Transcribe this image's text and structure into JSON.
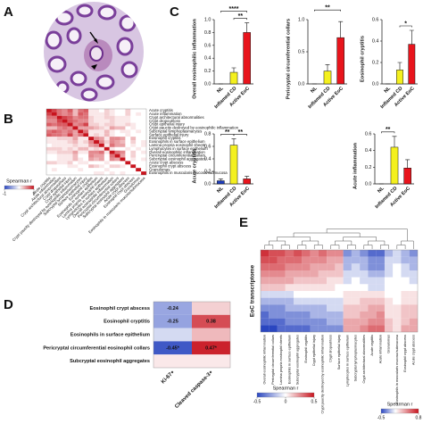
{
  "panel_labels": [
    "A",
    "B",
    "C",
    "D",
    "E"
  ],
  "chart_data": [
    {
      "type": "heatmap",
      "rows": [
        "Acute cryptitis",
        "Acute inflammation",
        "Crypt architectural abnormalities",
        "Crypt dropout/loss",
        "Crypt epithelial injury",
        "Crypt paucity destroyed by eosinophilic inflammation",
        "Subcryptal lymphoplasmacytes",
        "Surface epithelial injury",
        "Eosinophil cryptitis",
        "Eosinophils in surface epithelium",
        "Lamina propria eosinophil sheets",
        "Lymphocytes in surface epithelium",
        "Overall eosinophilic inflammation",
        "Pericryptal circumferential collars",
        "Subcryptal eosinophil aggregates",
        "Acute crypt abscess",
        "Eosinophil crypt abscess",
        "Granulomas",
        "Eosinophils in muscularis mucosa/submucosa"
      ],
      "columns": [
        "Acute cryptitis",
        "Acute inflammation",
        "Crypt architectural abnormalities",
        "Crypt dropout/loss",
        "Crypt epithelial injury",
        "Crypt paucity destroyed by eosinophilic inflammation",
        "Subcryptal lymphoplasmacytes",
        "Surface epithelial injury",
        "Eosinophil cryptitis",
        "Eosinophils in surface epithelium",
        "Lamina propria eosinophil sheets",
        "Lymphocytes in surface epithelium",
        "Overall eosinophilic inflammation",
        "Pericryptal circumferential collars",
        "Subcryptal eosinophil aggregates",
        "Acute crypt abscess",
        "Eosinophil crypt abscess",
        "Granulomas",
        "Eosinophils in muscularis mucosa/submucosa"
      ],
      "values": [
        [
          1,
          0.8,
          0.6,
          0.5,
          0.7,
          0.3,
          0.6,
          0.7,
          0.1,
          0.1,
          0,
          0.2,
          0.1,
          0,
          0,
          0.2,
          0,
          0,
          0
        ],
        [
          0.8,
          1,
          0.6,
          0.5,
          0.6,
          0.3,
          0.7,
          0.6,
          0.1,
          0.1,
          0.1,
          0.2,
          0.1,
          0,
          0,
          0.2,
          0,
          0.1,
          0
        ],
        [
          0.6,
          0.6,
          1,
          0.8,
          0.7,
          0.5,
          0.6,
          0.6,
          0.2,
          0.1,
          0.1,
          0.2,
          0.2,
          0.1,
          0.1,
          0.1,
          0,
          0,
          0
        ],
        [
          0.5,
          0.5,
          0.8,
          1,
          0.7,
          0.6,
          0.5,
          0.5,
          0.2,
          0.1,
          0.1,
          0.1,
          0.2,
          0.1,
          0.1,
          0.1,
          0,
          0,
          0
        ],
        [
          0.7,
          0.6,
          0.7,
          0.7,
          1,
          0.5,
          0.6,
          0.8,
          0.2,
          0.2,
          0.1,
          0.2,
          0.2,
          0.1,
          0.1,
          0.2,
          0.1,
          0,
          0
        ],
        [
          0.3,
          0.3,
          0.5,
          0.6,
          0.5,
          1,
          0.4,
          0.4,
          0.4,
          0.3,
          0.2,
          0.1,
          0.4,
          0.3,
          0.3,
          0,
          0.1,
          0,
          0
        ],
        [
          0.6,
          0.7,
          0.6,
          0.5,
          0.6,
          0.4,
          1,
          0.6,
          0.1,
          0.1,
          0.1,
          0.3,
          0.1,
          0,
          0.1,
          0.1,
          0,
          0.1,
          0
        ],
        [
          0.7,
          0.6,
          0.6,
          0.5,
          0.8,
          0.4,
          0.6,
          1,
          0.1,
          0.2,
          0.1,
          0.3,
          0.1,
          0,
          0,
          0.1,
          0,
          0,
          0
        ],
        [
          0.1,
          0.1,
          0.2,
          0.2,
          0.2,
          0.4,
          0.1,
          0.1,
          1,
          0.5,
          0.4,
          0.1,
          0.5,
          0.5,
          0.4,
          0,
          0.3,
          0,
          0
        ],
        [
          0.1,
          0.1,
          0.1,
          0.1,
          0.2,
          0.3,
          0.1,
          0.2,
          0.5,
          1,
          0.5,
          0.2,
          0.5,
          0.4,
          0.3,
          0,
          0.2,
          0,
          0.1
        ],
        [
          0,
          0.1,
          0.1,
          0.1,
          0.1,
          0.2,
          0.1,
          0.1,
          0.4,
          0.5,
          1,
          0.1,
          0.6,
          0.4,
          0.4,
          0,
          0.1,
          0,
          0.1
        ],
        [
          0.2,
          0.2,
          0.2,
          0.1,
          0.2,
          0.1,
          0.3,
          0.3,
          0.1,
          0.2,
          0.1,
          1,
          0.1,
          0,
          0,
          0.1,
          0,
          0.1,
          0
        ],
        [
          0.1,
          0.1,
          0.2,
          0.2,
          0.2,
          0.4,
          0.1,
          0.1,
          0.5,
          0.5,
          0.6,
          0.1,
          1,
          0.6,
          0.5,
          0,
          0.2,
          0,
          0.1
        ],
        [
          0,
          0,
          0.1,
          0.1,
          0.1,
          0.3,
          0,
          0,
          0.5,
          0.4,
          0.4,
          0,
          0.6,
          1,
          0.4,
          0,
          0.2,
          0,
          0
        ],
        [
          0,
          0,
          0.1,
          0.1,
          0.1,
          0.3,
          0.1,
          0,
          0.4,
          0.3,
          0.4,
          0,
          0.5,
          0.4,
          1,
          0,
          0.1,
          0,
          0.1
        ],
        [
          0.2,
          0.2,
          0.1,
          0.1,
          0.2,
          0,
          0.1,
          0.1,
          0,
          0,
          0,
          0.1,
          0,
          0,
          0,
          1,
          0,
          0,
          0
        ],
        [
          0,
          0,
          0,
          0,
          0.1,
          0.1,
          0,
          0,
          0.3,
          0.2,
          0.1,
          0,
          0.2,
          0.2,
          0.1,
          0,
          1,
          0,
          0
        ],
        [
          0,
          0.1,
          0,
          0,
          0,
          0,
          0.1,
          0,
          0,
          0,
          0,
          0.1,
          0,
          0,
          0,
          0,
          0,
          1,
          0
        ],
        [
          0,
          0,
          0,
          0,
          0,
          0,
          0,
          0,
          0,
          0.1,
          0.1,
          0,
          0.1,
          0,
          0.1,
          0,
          0,
          0,
          1
        ]
      ],
      "colormap": [
        "#2a46c0",
        "#ffffff",
        "#c8141e"
      ],
      "colorbar": {
        "title": "Spearman r",
        "lim": [
          -1,
          1
        ],
        "ticks": [
          -1,
          1
        ]
      }
    },
    {
      "type": "bar",
      "ylabel": "Overall eosinophilic inflammation",
      "categories": [
        "NL",
        "Inflamed CD",
        "Active EoC"
      ],
      "values": [
        0,
        0.18,
        0.8
      ],
      "errors": [
        0,
        0.07,
        0.15
      ],
      "colors": [
        "#1f3fbf",
        "#f4f01e",
        "#e8141c"
      ],
      "ylim": [
        0,
        1
      ],
      "yticks": [
        {
          "value": 0,
          "label": "0.0"
        },
        0.2,
        0.4,
        0.6,
        0.8,
        {
          "value": 1,
          "label": "1.0"
        }
      ],
      "significance": [
        {
          "label": "****",
          "between": [
            "NL",
            "Active EoC"
          ]
        },
        {
          "label": "**",
          "between": [
            "Inflamed CD",
            "Active EoC"
          ]
        }
      ]
    },
    {
      "type": "bar",
      "ylabel": "Pericryptal circumferential collars",
      "categories": [
        "NL",
        "Inflamed CD",
        "Active EoC"
      ],
      "values": [
        0,
        0.2,
        0.72
      ],
      "errors": [
        0,
        0.1,
        0.25
      ],
      "colors": [
        "#1f3fbf",
        "#f4f01e",
        "#e8141c"
      ],
      "ylim": [
        0,
        1
      ],
      "yticks": [
        {
          "value": 0,
          "label": "0.0"
        },
        0.5,
        {
          "value": 1,
          "label": "1.0"
        }
      ],
      "significance": [
        {
          "label": "**",
          "between": [
            "NL",
            "Active EoC"
          ]
        }
      ]
    },
    {
      "type": "bar",
      "ylabel": "Eosinophil cryptitis",
      "categories": [
        "NL",
        "Inflamed CD",
        "Active EoC"
      ],
      "values": [
        0,
        0.13,
        0.37
      ],
      "errors": [
        0,
        0.07,
        0.13
      ],
      "colors": [
        "#1f3fbf",
        "#f4f01e",
        "#e8141c"
      ],
      "ylim": [
        0,
        0.6
      ],
      "yticks": [
        {
          "value": 0,
          "label": "0.0"
        },
        0.2,
        0.4,
        0.6
      ],
      "significance": [
        {
          "label": "*",
          "between": [
            "Inflamed CD",
            "Active EoC"
          ]
        }
      ]
    },
    {
      "type": "bar",
      "ylabel": "Acute cryptitis",
      "categories": [
        "NL",
        "Inflamed CD",
        "Active EoC"
      ],
      "values": [
        0.05,
        0.62,
        0.08
      ],
      "errors": [
        0.03,
        0.1,
        0.04
      ],
      "colors": [
        "#1f3fbf",
        "#f4f01e",
        "#e8141c"
      ],
      "ylim": [
        0,
        0.8
      ],
      "yticks": [
        {
          "value": 0,
          "label": "0.0"
        },
        0.2,
        0.4,
        0.6,
        0.8
      ],
      "significance": [
        {
          "label": "**",
          "between": [
            "NL",
            "Inflamed CD"
          ]
        },
        {
          "label": "**",
          "between": [
            "Inflamed CD",
            "Active EoC"
          ]
        }
      ]
    },
    {
      "type": "bar",
      "ylabel": "Acute inflammation",
      "categories": [
        "NL",
        "Inflamed CD",
        "Active EoC"
      ],
      "values": [
        0,
        0.44,
        0.19
      ],
      "errors": [
        0,
        0.13,
        0.1
      ],
      "colors": [
        "#1f3fbf",
        "#f4f01e",
        "#e8141c"
      ],
      "ylim": [
        0,
        0.6
      ],
      "yticks": [
        {
          "value": 0,
          "label": "0.0"
        },
        0.2,
        0.4,
        0.6
      ],
      "significance": [
        {
          "label": "**",
          "between": [
            "NL",
            "Inflamed CD"
          ]
        }
      ]
    },
    {
      "type": "heatmap",
      "rows": [
        "Eosinophil crypt abscess",
        "Eosinophil cryptitis",
        "Eosinophils in surface epithelium",
        "Pericryptal circumferential eosinophil collars",
        "Subcryptal eosinophil aggregates"
      ],
      "columns": [
        "Ki-67+",
        "Cleaved caspase-3+"
      ],
      "values": [
        [
          -0.24,
          0.1
        ],
        [
          -0.25,
          0.38
        ],
        [
          -0.1,
          0.15
        ],
        [
          -0.45,
          0.47
        ],
        [
          0.05,
          0.05
        ]
      ],
      "value_labels": [
        [
          "-0.24",
          null
        ],
        [
          "-0.25",
          "0.38"
        ],
        [
          null,
          null
        ],
        [
          "-0.45*",
          "0.47*"
        ],
        [
          null,
          null
        ]
      ],
      "colormap": [
        "#2a46c0",
        "#ffffff",
        "#c8141e"
      ],
      "colorbar": {
        "title": "Spearman r",
        "lim": [
          -0.5,
          0.5
        ],
        "ticks": [
          -0.5,
          0,
          0.5
        ]
      }
    },
    {
      "type": "heatmap",
      "row_label": "EoC transcriptome",
      "columns": [
        "Overall eosinophilic inflammation",
        "Pericryptal circumferential collars",
        "Lamina propria eosinophil sheets",
        "Eosinophils in surface epithelium",
        "Subcryptal eosinophil aggregates",
        "Eosinophil cryptitis",
        "Crypt epithelial injury",
        "Crypt paucity destroyed by eosinophilic inflammation",
        "Crypt dropout/loss",
        "Surface epithelial injury",
        "Lymphocytes in surface epithelium",
        "Subcryptal lymphoplasmacytes",
        "Crypt architectural abnormalities",
        "Acute cryptitis",
        "Acute inflammation",
        "Granulomas",
        "Eosinophils in muscularis mucosa/submucosa",
        "Eosinophil crypt abscess",
        "Acute crypt abscess"
      ],
      "values": [
        [
          0.7,
          0.6,
          0.6,
          0.5,
          0.6,
          0.5,
          0.4,
          0.5,
          0.4,
          0.4,
          -0.3,
          -0.2,
          -0.3,
          -0.4,
          -0.4,
          -0.2,
          -0.1,
          -0.2,
          -0.3
        ],
        [
          0.6,
          0.6,
          0.5,
          0.5,
          0.5,
          0.4,
          0.4,
          0.4,
          0.3,
          0.3,
          -0.2,
          -0.2,
          -0.2,
          -0.3,
          -0.3,
          -0.1,
          -0.1,
          -0.2,
          -0.2
        ],
        [
          0.5,
          0.5,
          0.5,
          0.4,
          0.4,
          0.4,
          0.3,
          0.3,
          0.3,
          0.2,
          -0.2,
          -0.1,
          -0.2,
          -0.3,
          -0.3,
          -0.1,
          0,
          -0.1,
          -0.2
        ],
        [
          0.4,
          0.4,
          0.4,
          0.3,
          0.3,
          0.3,
          0.3,
          0.2,
          0.2,
          0.2,
          -0.1,
          -0.1,
          -0.1,
          -0.2,
          -0.2,
          -0.1,
          0,
          -0.1,
          -0.1
        ],
        [
          0.3,
          0.3,
          0.3,
          0.3,
          0.2,
          0.2,
          0.2,
          0.2,
          0.1,
          0.1,
          -0.1,
          0,
          -0.1,
          -0.1,
          -0.1,
          0,
          0,
          0,
          -0.1
        ],
        [
          0.2,
          0.2,
          0.2,
          0.1,
          0.1,
          0.1,
          0.1,
          0.1,
          0.1,
          0,
          0,
          0,
          0,
          -0.1,
          -0.1,
          0,
          0,
          0,
          0
        ],
        [
          -0.1,
          -0.1,
          -0.1,
          -0.1,
          0,
          0,
          0,
          0,
          0,
          0,
          0.1,
          0.1,
          0.1,
          0.1,
          0.1,
          0,
          0,
          0.1,
          0.1
        ],
        [
          -0.2,
          -0.2,
          -0.2,
          -0.2,
          -0.1,
          -0.1,
          -0.1,
          -0.1,
          -0.1,
          -0.1,
          0.1,
          0.1,
          0.2,
          0.2,
          0.2,
          0.1,
          0,
          0.1,
          0.1
        ],
        [
          -0.3,
          -0.3,
          -0.3,
          -0.2,
          -0.2,
          -0.2,
          -0.2,
          -0.2,
          -0.1,
          -0.1,
          0.2,
          0.2,
          0.2,
          0.3,
          0.3,
          0.1,
          0.1,
          0.2,
          0.2
        ],
        [
          -0.4,
          -0.3,
          -0.3,
          -0.3,
          -0.3,
          -0.3,
          -0.2,
          -0.2,
          -0.2,
          -0.2,
          0.2,
          0.2,
          0.3,
          0.3,
          0.4,
          0.1,
          0.1,
          0.2,
          0.2
        ],
        [
          -0.4,
          -0.4,
          -0.4,
          -0.3,
          -0.3,
          -0.3,
          -0.3,
          -0.3,
          -0.2,
          -0.2,
          0.3,
          0.3,
          0.3,
          0.4,
          0.4,
          0.2,
          0.1,
          0.2,
          0.3
        ],
        [
          -0.5,
          -0.5,
          -0.4,
          -0.4,
          -0.4,
          -0.4,
          -0.3,
          -0.3,
          -0.3,
          -0.3,
          0.3,
          0.3,
          0.4,
          0.5,
          0.5,
          0.2,
          0.1,
          0.3,
          0.3
        ]
      ],
      "colormap": [
        "#2a46c0",
        "#ffffff",
        "#c8141e"
      ],
      "colorbar": {
        "title": "Spearman r",
        "lim": [
          -0.5,
          0.8
        ],
        "ticks": [
          -0.5,
          0.8
        ]
      }
    }
  ]
}
